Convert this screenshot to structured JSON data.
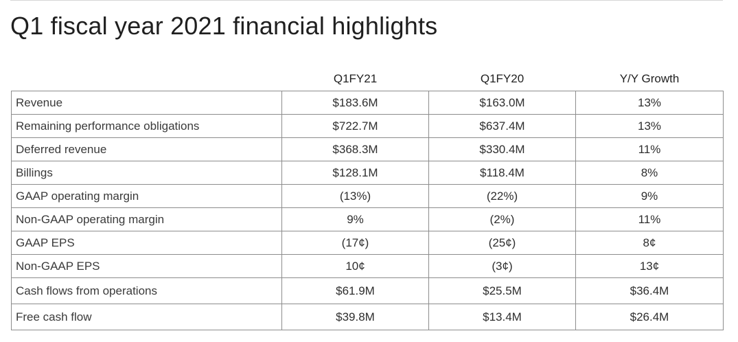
{
  "title": "Q1 fiscal year 2021 financial highlights",
  "table": {
    "columns": [
      "",
      "Q1FY21",
      "Q1FY20",
      "Y/Y Growth"
    ],
    "rows": [
      {
        "metric": "Revenue",
        "q1fy21": "$183.6M",
        "q1fy20": "$163.0M",
        "growth": "13%"
      },
      {
        "metric": "Remaining performance obligations",
        "q1fy21": "$722.7M",
        "q1fy20": "$637.4M",
        "growth": "13%"
      },
      {
        "metric": "Deferred revenue",
        "q1fy21": "$368.3M",
        "q1fy20": "$330.4M",
        "growth": "11%"
      },
      {
        "metric": "Billings",
        "q1fy21": "$128.1M",
        "q1fy20": "$118.4M",
        "growth": "8%"
      },
      {
        "metric": "GAAP operating margin",
        "q1fy21": "(13%)",
        "q1fy20": "(22%)",
        "growth": "9%"
      },
      {
        "metric": "Non-GAAP operating margin",
        "q1fy21": "9%",
        "q1fy20": "(2%)",
        "growth": "11%"
      },
      {
        "metric": "GAAP EPS",
        "q1fy21": "(17¢)",
        "q1fy20": "(25¢)",
        "growth": "8¢"
      },
      {
        "metric": "Non-GAAP EPS",
        "q1fy21": "10¢",
        "q1fy20": "(3¢)",
        "growth": "13¢"
      },
      {
        "metric": "Cash flows from operations",
        "q1fy21": "$61.9M",
        "q1fy20": "$25.5M",
        "growth": "$36.4M"
      },
      {
        "metric": "Free cash flow",
        "q1fy21": "$39.8M",
        "q1fy20": "$13.4M",
        "growth": "$26.4M"
      }
    ]
  },
  "colors": {
    "border": "#8c8c8c",
    "text": "#2e2e2e",
    "rule": "#d6d6d6"
  }
}
